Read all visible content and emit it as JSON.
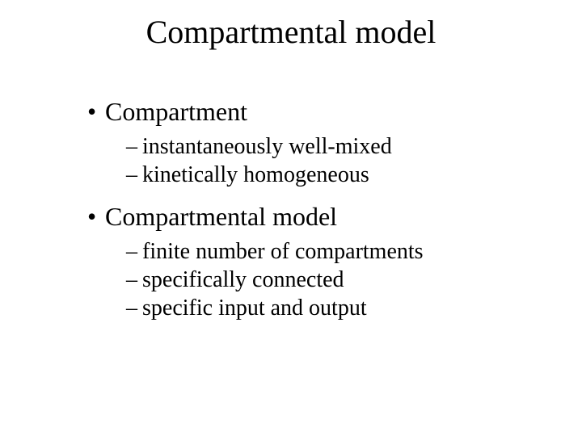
{
  "slide": {
    "title": "Compartmental model",
    "bullets": [
      {
        "label": "Compartment",
        "sub": [
          "instantaneously well-mixed",
          "kinetically homogeneous"
        ]
      },
      {
        "label": "Compartmental model",
        "sub": [
          "finite number of compartments",
          "specifically connected",
          "specific input and output"
        ]
      }
    ]
  },
  "style": {
    "background_color": "#ffffff",
    "text_color": "#000000",
    "font_family": "Times New Roman",
    "title_fontsize": 40,
    "l1_fontsize": 32,
    "l2_fontsize": 28,
    "l1_bullet": "•",
    "l2_bullet": "–"
  }
}
